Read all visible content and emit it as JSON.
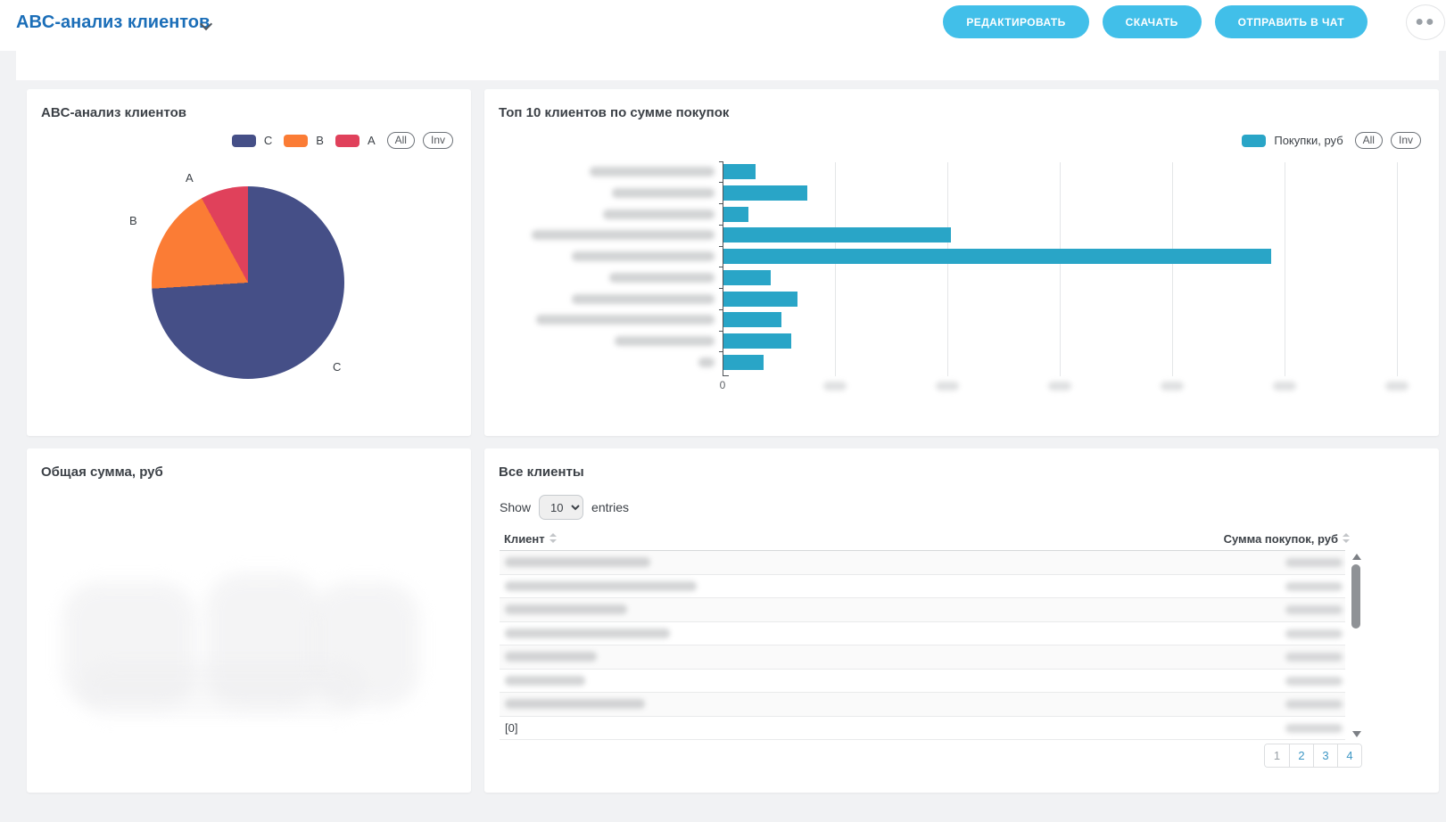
{
  "header": {
    "title": "ABC-анализ клиентов",
    "buttons": [
      {
        "id": "edit-button",
        "label": "РЕДАКТИРОВАТЬ"
      },
      {
        "id": "download-button",
        "label": "СКАЧАТЬ"
      },
      {
        "id": "send-to-chat-button",
        "label": "ОТПРАВИТЬ В ЧАТ"
      }
    ],
    "more_button_glyph": "●●"
  },
  "colors": {
    "accent_blue": "#1b6eb8",
    "button_cyan": "#41bfe9",
    "bar_teal": "#29a5c7",
    "pie_c": "#454f87",
    "pie_b": "#fb7c35",
    "pie_a": "#e0415b",
    "page_bg": "#f1f2f4"
  },
  "pie_card": {
    "title": "ABC-анализ клиентов",
    "legend": [
      {
        "label": "C",
        "color": "#454f87"
      },
      {
        "label": "B",
        "color": "#fb7c35"
      },
      {
        "label": "A",
        "color": "#e0415b"
      }
    ],
    "zoom_buttons": [
      "All",
      "Inv"
    ]
  },
  "bar_card": {
    "title": "Топ 10 клиентов по сумме покупок",
    "legend_label": "Покупки, руб",
    "legend_color": "#29a5c7",
    "zoom_buttons": [
      "All",
      "Inv"
    ]
  },
  "sum_card": {
    "title": "Общая сумма, руб",
    "value_visible": false,
    "value_note": "large KPI number faded/illegible in screenshot"
  },
  "table_card": {
    "title": "Все клиенты",
    "show_label": "Show",
    "entries_label": "entries",
    "page_size": "10",
    "columns": [
      "Клиент",
      "Сумма покупок, руб"
    ],
    "rows_redacted": true,
    "row_count_visible": 8,
    "last_row_label": "[0]",
    "pagination": [
      "1",
      "2",
      "3",
      "4"
    ],
    "active_page": "1"
  },
  "chart_data": [
    {
      "type": "pie",
      "title": "ABC-анализ клиентов",
      "slices": [
        {
          "label": "C",
          "value_pct": 74,
          "color": "#454f87"
        },
        {
          "label": "B",
          "value_pct": 18,
          "color": "#fb7c35"
        },
        {
          "label": "A",
          "value_pct": 8,
          "color": "#e0415b"
        }
      ],
      "start": "12-o-clock",
      "direction": "clockwise",
      "labels_outside": true,
      "label_positions": {
        "A": [
          178,
          92
        ],
        "B": [
          115,
          140
        ],
        "C": [
          343,
          304
        ]
      }
    },
    {
      "type": "bar",
      "orientation": "horizontal",
      "title": "Топ 10 клиентов по сумме покупок",
      "series": [
        {
          "name": "Покупки, руб",
          "color": "#29a5c7",
          "values_pct_of_max": [
            5.9,
            15.3,
            4.6,
            41.5,
            100,
            8.6,
            13.5,
            10.6,
            12.4,
            7.3
          ]
        }
      ],
      "categories_redacted": true,
      "category_blob_widths": [
        140,
        115,
        125,
        205,
        160,
        118,
        160,
        200,
        112,
        18
      ],
      "x_axis": {
        "first_tick_label": "0",
        "other_tick_labels_blurred": true,
        "gridline_count": 6
      },
      "grid": true,
      "legend_position": "top-right"
    }
  ],
  "table_blobs": {
    "name_widths": [
      163,
      215,
      137,
      185,
      103,
      90,
      157
    ],
    "value_rows": 8
  }
}
